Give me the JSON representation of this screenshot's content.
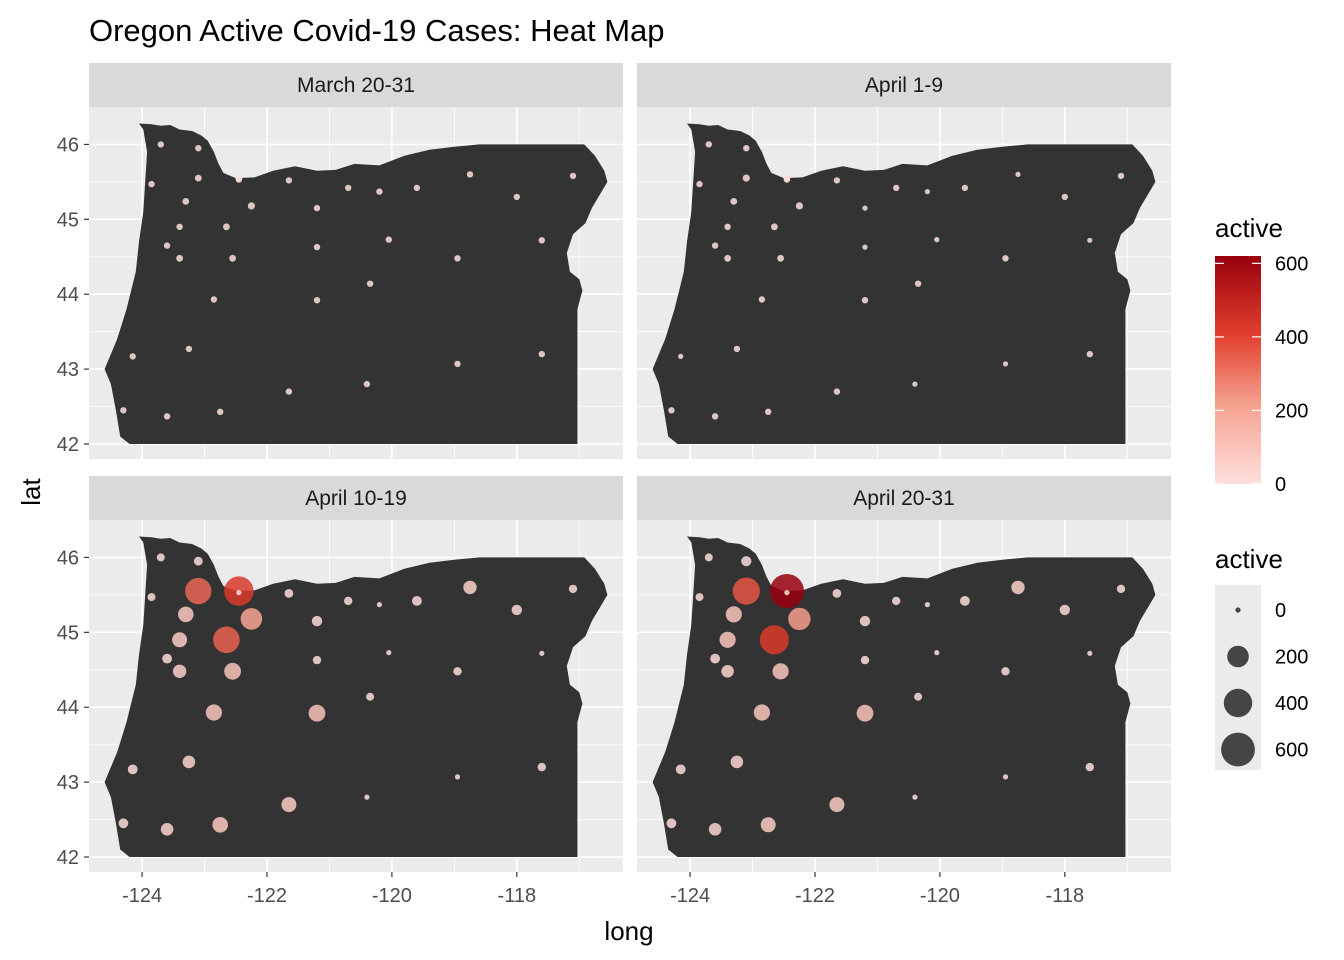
{
  "chart_data": {
    "type": "scatter",
    "title": "Oregon Active Covid-19 Cases: Heat Map",
    "xlabel": "long",
    "ylabel": "lat",
    "xlim": [
      -124.85,
      -116.3
    ],
    "ylim": [
      41.8,
      46.5
    ],
    "x_ticks": [
      -124,
      -122,
      -120,
      -118
    ],
    "y_ticks": [
      42,
      43,
      44,
      45,
      46
    ],
    "facets": [
      "March 20-31",
      "April 1-9",
      "April 10-19",
      "April 20-31"
    ],
    "color_legend": {
      "title": "active",
      "breaks": [
        0,
        200,
        400,
        600
      ],
      "low": "#fde0dd",
      "mid": "#ef5a4a",
      "high": "#99000d"
    },
    "size_legend": {
      "title": "active",
      "breaks": [
        0,
        200,
        400,
        600
      ]
    },
    "background_color": "#333333",
    "counties": [
      {
        "long": -123.7,
        "lat": 46.0,
        "values": [
          1,
          1,
          6,
          6
        ]
      },
      {
        "long": -123.1,
        "lat": 45.95,
        "values": [
          1,
          1,
          10,
          18
        ]
      },
      {
        "long": -123.85,
        "lat": 45.47,
        "values": [
          1,
          1,
          6,
          6
        ]
      },
      {
        "long": -123.1,
        "lat": 45.55,
        "values": [
          2,
          3,
          330,
          360
        ]
      },
      {
        "long": -122.45,
        "lat": 45.55,
        "values": [
          2,
          2,
          430,
          620
        ]
      },
      {
        "long": -123.3,
        "lat": 45.24,
        "values": [
          2,
          2,
          80,
          90
        ]
      },
      {
        "long": -122.25,
        "lat": 45.18,
        "values": [
          3,
          3,
          200,
          220
        ]
      },
      {
        "long": -123.4,
        "lat": 44.9,
        "values": [
          1,
          1,
          70,
          90
        ]
      },
      {
        "long": -122.65,
        "lat": 44.9,
        "values": [
          2,
          2,
          340,
          420
        ]
      },
      {
        "long": -123.6,
        "lat": 44.65,
        "values": [
          1,
          1,
          15,
          15
        ]
      },
      {
        "long": -123.4,
        "lat": 44.48,
        "values": [
          2,
          2,
          50,
          40
        ]
      },
      {
        "long": -122.55,
        "lat": 44.48,
        "values": [
          2,
          2,
          100,
          90
        ]
      },
      {
        "long": -122.85,
        "lat": 43.93,
        "values": [
          1,
          1,
          90,
          90
        ]
      },
      {
        "long": -123.25,
        "lat": 43.27,
        "values": [
          1,
          1,
          40,
          40
        ]
      },
      {
        "long": -124.15,
        "lat": 43.17,
        "values": [
          1,
          0,
          15,
          15
        ]
      },
      {
        "long": -124.3,
        "lat": 42.45,
        "values": [
          1,
          1,
          15,
          15
        ]
      },
      {
        "long": -123.6,
        "lat": 42.37,
        "values": [
          1,
          1,
          40,
          40
        ]
      },
      {
        "long": -122.75,
        "lat": 42.43,
        "values": [
          1,
          1,
          80,
          70
        ]
      },
      {
        "long": -121.65,
        "lat": 42.7,
        "values": [
          1,
          1,
          70,
          70
        ]
      },
      {
        "long": -121.2,
        "lat": 43.92,
        "values": [
          1,
          1,
          100,
          100
        ]
      },
      {
        "long": -121.2,
        "lat": 44.63,
        "values": [
          1,
          0,
          8,
          8
        ]
      },
      {
        "long": -121.2,
        "lat": 45.15,
        "values": [
          1,
          0,
          20,
          20
        ]
      },
      {
        "long": -121.65,
        "lat": 45.52,
        "values": [
          1,
          1,
          10,
          10
        ]
      },
      {
        "long": -120.7,
        "lat": 45.42,
        "values": [
          1,
          1,
          8,
          8
        ]
      },
      {
        "long": -120.2,
        "lat": 45.37,
        "values": [
          1,
          0,
          0,
          0
        ]
      },
      {
        "long": -119.6,
        "lat": 45.42,
        "values": [
          1,
          1,
          15,
          15
        ]
      },
      {
        "long": -120.05,
        "lat": 44.73,
        "values": [
          1,
          0,
          0,
          0
        ]
      },
      {
        "long": -118.95,
        "lat": 44.48,
        "values": [
          1,
          1,
          8,
          8
        ]
      },
      {
        "long": -120.35,
        "lat": 44.14,
        "values": [
          1,
          1,
          6,
          6
        ]
      },
      {
        "long": -118.75,
        "lat": 45.6,
        "values": [
          1,
          0,
          50,
          50
        ]
      },
      {
        "long": -118.0,
        "lat": 45.3,
        "values": [
          1,
          1,
          20,
          20
        ]
      },
      {
        "long": -117.1,
        "lat": 45.58,
        "values": [
          1,
          1,
          8,
          8
        ]
      },
      {
        "long": -117.6,
        "lat": 44.72,
        "values": [
          1,
          0,
          0,
          0
        ]
      },
      {
        "long": -118.95,
        "lat": 43.07,
        "values": [
          1,
          0,
          0,
          0
        ]
      },
      {
        "long": -117.6,
        "lat": 43.2,
        "values": [
          1,
          1,
          8,
          8
        ]
      },
      {
        "long": -120.4,
        "lat": 42.8,
        "values": [
          1,
          0,
          0,
          0
        ]
      },
      {
        "long": -122.45,
        "lat": 45.53,
        "values": [
          1,
          1,
          0,
          0
        ]
      }
    ]
  }
}
